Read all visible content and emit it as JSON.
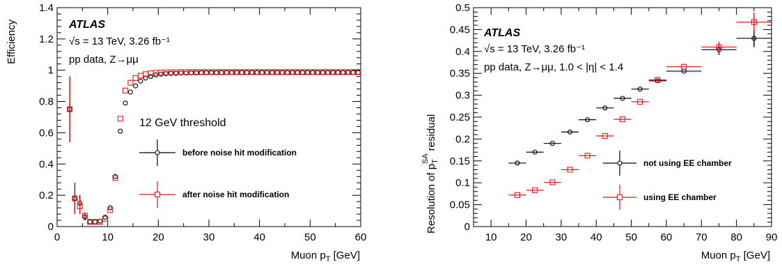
{
  "chart_data": [
    {
      "type": "scatter",
      "experiment": "ATLAS",
      "energy_lumi": "√s = 13 TeV, 3.26 fb⁻¹",
      "dataset": "pp data, Z→μμ",
      "annotation": "12 GeV threshold",
      "xlabel": "Muon p_T [GeV]",
      "ylabel": "Efficiency",
      "xlim": [
        0,
        60
      ],
      "ylim": [
        0,
        1.4
      ],
      "x_ticks": [
        "0",
        "10",
        "20",
        "30",
        "40",
        "50",
        "60"
      ],
      "y_ticks": [
        "0",
        "0.2",
        "0.4",
        "0.6",
        "0.8",
        "1",
        "1.2",
        "1.4"
      ],
      "legend_position": "center-right",
      "grid": false,
      "series": [
        {
          "name": "before noise hit modification",
          "color": "#000000",
          "marker": "open-circle",
          "points": [
            {
              "x": 2.5,
              "y": 0.75,
              "yerr": 0.21
            },
            {
              "x": 3.5,
              "y": 0.18,
              "yerr": 0.1
            },
            {
              "x": 4.5,
              "y": 0.15,
              "yerr": 0.05
            },
            {
              "x": 5.5,
              "y": 0.06,
              "yerr": 0.02
            },
            {
              "x": 6.5,
              "y": 0.03
            },
            {
              "x": 7.5,
              "y": 0.03
            },
            {
              "x": 8.5,
              "y": 0.035
            },
            {
              "x": 9.5,
              "y": 0.06
            },
            {
              "x": 10.5,
              "y": 0.12
            },
            {
              "x": 11.5,
              "y": 0.32
            },
            {
              "x": 12.5,
              "y": 0.61
            },
            {
              "x": 13.5,
              "y": 0.79
            },
            {
              "x": 14.5,
              "y": 0.86
            },
            {
              "x": 15.5,
              "y": 0.9
            },
            {
              "x": 16.5,
              "y": 0.93
            },
            {
              "x": 17.5,
              "y": 0.95
            },
            {
              "x": 18.5,
              "y": 0.96
            },
            {
              "x": 19.5,
              "y": 0.97
            },
            {
              "x": 20.5,
              "y": 0.975
            },
            {
              "x": 21.5,
              "y": 0.978
            },
            {
              "x": 22.5,
              "y": 0.98
            },
            {
              "x": 23.5,
              "y": 0.98
            },
            {
              "x": 24.5,
              "y": 0.982
            },
            {
              "x": 25.5,
              "y": 0.982
            },
            {
              "x": 26.5,
              "y": 0.983
            },
            {
              "x": 27.5,
              "y": 0.983
            },
            {
              "x": 28.5,
              "y": 0.984
            },
            {
              "x": 29.5,
              "y": 0.984
            },
            {
              "x": 30.5,
              "y": 0.984
            },
            {
              "x": 31.5,
              "y": 0.984
            },
            {
              "x": 32.5,
              "y": 0.985
            },
            {
              "x": 33.5,
              "y": 0.985
            },
            {
              "x": 34.5,
              "y": 0.985
            },
            {
              "x": 35.5,
              "y": 0.985
            },
            {
              "x": 36.5,
              "y": 0.985
            },
            {
              "x": 37.5,
              "y": 0.985
            },
            {
              "x": 38.5,
              "y": 0.985
            },
            {
              "x": 39.5,
              "y": 0.985
            },
            {
              "x": 40.5,
              "y": 0.985
            },
            {
              "x": 41.5,
              "y": 0.985
            },
            {
              "x": 42.5,
              "y": 0.985
            },
            {
              "x": 43.5,
              "y": 0.985
            },
            {
              "x": 44.5,
              "y": 0.985
            },
            {
              "x": 45.5,
              "y": 0.985
            },
            {
              "x": 46.5,
              "y": 0.985
            },
            {
              "x": 47.5,
              "y": 0.985
            },
            {
              "x": 48.5,
              "y": 0.985
            },
            {
              "x": 49.5,
              "y": 0.985
            },
            {
              "x": 50.5,
              "y": 0.985
            },
            {
              "x": 51.5,
              "y": 0.985
            },
            {
              "x": 52.5,
              "y": 0.985
            },
            {
              "x": 53.5,
              "y": 0.985
            },
            {
              "x": 54.5,
              "y": 0.985
            },
            {
              "x": 55.5,
              "y": 0.985
            },
            {
              "x": 56.5,
              "y": 0.985
            },
            {
              "x": 57.5,
              "y": 0.985
            },
            {
              "x": 58.5,
              "y": 0.985
            },
            {
              "x": 59.5,
              "y": 0.985
            }
          ]
        },
        {
          "name": "after noise hit modification",
          "color": "#e8141b",
          "marker": "open-square",
          "points": [
            {
              "x": 2.5,
              "y": 0.75,
              "yerr": 0.21
            },
            {
              "x": 3.5,
              "y": 0.18,
              "yerr": 0.1
            },
            {
              "x": 4.5,
              "y": 0.13,
              "yerr": 0.05
            },
            {
              "x": 5.5,
              "y": 0.07,
              "yerr": 0.02
            },
            {
              "x": 6.5,
              "y": 0.03
            },
            {
              "x": 7.5,
              "y": 0.03
            },
            {
              "x": 8.5,
              "y": 0.03
            },
            {
              "x": 9.5,
              "y": 0.05
            },
            {
              "x": 10.5,
              "y": 0.105
            },
            {
              "x": 11.5,
              "y": 0.31
            },
            {
              "x": 12.5,
              "y": 0.69
            },
            {
              "x": 13.5,
              "y": 0.87
            },
            {
              "x": 14.5,
              "y": 0.92
            },
            {
              "x": 15.5,
              "y": 0.95
            },
            {
              "x": 16.5,
              "y": 0.965
            },
            {
              "x": 17.5,
              "y": 0.975
            },
            {
              "x": 18.5,
              "y": 0.98
            },
            {
              "x": 19.5,
              "y": 0.983
            },
            {
              "x": 20.5,
              "y": 0.985
            },
            {
              "x": 21.5,
              "y": 0.986
            },
            {
              "x": 22.5,
              "y": 0.987
            },
            {
              "x": 23.5,
              "y": 0.987
            },
            {
              "x": 24.5,
              "y": 0.988
            },
            {
              "x": 25.5,
              "y": 0.988
            },
            {
              "x": 26.5,
              "y": 0.988
            },
            {
              "x": 27.5,
              "y": 0.988
            },
            {
              "x": 28.5,
              "y": 0.988
            },
            {
              "x": 29.5,
              "y": 0.988
            },
            {
              "x": 30.5,
              "y": 0.988
            },
            {
              "x": 31.5,
              "y": 0.988
            },
            {
              "x": 32.5,
              "y": 0.988
            },
            {
              "x": 33.5,
              "y": 0.988
            },
            {
              "x": 34.5,
              "y": 0.988
            },
            {
              "x": 35.5,
              "y": 0.988
            },
            {
              "x": 36.5,
              "y": 0.988
            },
            {
              "x": 37.5,
              "y": 0.988
            },
            {
              "x": 38.5,
              "y": 0.988
            },
            {
              "x": 39.5,
              "y": 0.988
            },
            {
              "x": 40.5,
              "y": 0.988
            },
            {
              "x": 41.5,
              "y": 0.988
            },
            {
              "x": 42.5,
              "y": 0.988
            },
            {
              "x": 43.5,
              "y": 0.988
            },
            {
              "x": 44.5,
              "y": 0.988
            },
            {
              "x": 45.5,
              "y": 0.988
            },
            {
              "x": 46.5,
              "y": 0.988
            },
            {
              "x": 47.5,
              "y": 0.988
            },
            {
              "x": 48.5,
              "y": 0.988
            },
            {
              "x": 49.5,
              "y": 0.988
            },
            {
              "x": 50.5,
              "y": 0.988
            },
            {
              "x": 51.5,
              "y": 0.988
            },
            {
              "x": 52.5,
              "y": 0.988
            },
            {
              "x": 53.5,
              "y": 0.988
            },
            {
              "x": 54.5,
              "y": 0.988
            },
            {
              "x": 55.5,
              "y": 0.988
            },
            {
              "x": 56.5,
              "y": 0.988
            },
            {
              "x": 57.5,
              "y": 0.988
            },
            {
              "x": 58.5,
              "y": 0.988
            },
            {
              "x": 59.5,
              "y": 0.988
            }
          ]
        }
      ]
    },
    {
      "type": "scatter",
      "experiment": "ATLAS",
      "energy_lumi": "√s = 13 TeV, 3.26 fb⁻¹",
      "dataset": "pp data, Z→μμ, 1.0 < |η| < 1.4",
      "xlabel": "Muon p_T [GeV]",
      "ylabel": "Resolution of p_T^SA residual",
      "xlim": [
        5,
        90
      ],
      "ylim": [
        0,
        0.5
      ],
      "x_ticks": [
        "10",
        "20",
        "30",
        "40",
        "50",
        "60",
        "70",
        "80",
        "90"
      ],
      "y_ticks": [
        "0",
        "0.05",
        "0.1",
        "0.15",
        "0.2",
        "0.25",
        "0.3",
        "0.35",
        "0.4",
        "0.45",
        "0.5"
      ],
      "legend_position": "center-right",
      "grid": false,
      "series": [
        {
          "name": "not using EE chamber",
          "color": "#000000",
          "marker": "open-circle",
          "points": [
            {
              "x": 17.5,
              "y": 0.145,
              "xerr": 2.5
            },
            {
              "x": 22.5,
              "y": 0.17,
              "xerr": 2.5
            },
            {
              "x": 27.5,
              "y": 0.19,
              "xerr": 2.5
            },
            {
              "x": 32.5,
              "y": 0.216,
              "xerr": 2.5
            },
            {
              "x": 37.5,
              "y": 0.244,
              "xerr": 2.5
            },
            {
              "x": 42.5,
              "y": 0.271,
              "xerr": 2.5
            },
            {
              "x": 47.5,
              "y": 0.293,
              "xerr": 2.5
            },
            {
              "x": 52.5,
              "y": 0.314,
              "xerr": 2.5
            },
            {
              "x": 57.5,
              "y": 0.333,
              "xerr": 2.5
            },
            {
              "x": 65,
              "y": 0.355,
              "xerr": 5
            },
            {
              "x": 75,
              "y": 0.404,
              "xerr": 5,
              "yerr": 0.012
            },
            {
              "x": 85,
              "y": 0.43,
              "xerr": 5,
              "yerr": 0.02
            }
          ]
        },
        {
          "name": "using EE chamber",
          "color": "#e8141b",
          "marker": "open-square",
          "points": [
            {
              "x": 17.5,
              "y": 0.072,
              "xerr": 2.5
            },
            {
              "x": 22.5,
              "y": 0.083,
              "xerr": 2.5
            },
            {
              "x": 27.5,
              "y": 0.101,
              "xerr": 2.5
            },
            {
              "x": 32.5,
              "y": 0.13,
              "xerr": 2.5
            },
            {
              "x": 37.5,
              "y": 0.162,
              "xerr": 2.5
            },
            {
              "x": 42.5,
              "y": 0.207,
              "xerr": 2.5
            },
            {
              "x": 47.5,
              "y": 0.245,
              "xerr": 2.5
            },
            {
              "x": 52.5,
              "y": 0.285,
              "xerr": 2.5
            },
            {
              "x": 57.5,
              "y": 0.335,
              "xerr": 2.5
            },
            {
              "x": 65,
              "y": 0.365,
              "xerr": 5
            },
            {
              "x": 75,
              "y": 0.41,
              "xerr": 5,
              "yerr": 0.012
            },
            {
              "x": 85,
              "y": 0.467,
              "xerr": 5,
              "yerr": 0.022
            }
          ]
        }
      ]
    }
  ]
}
